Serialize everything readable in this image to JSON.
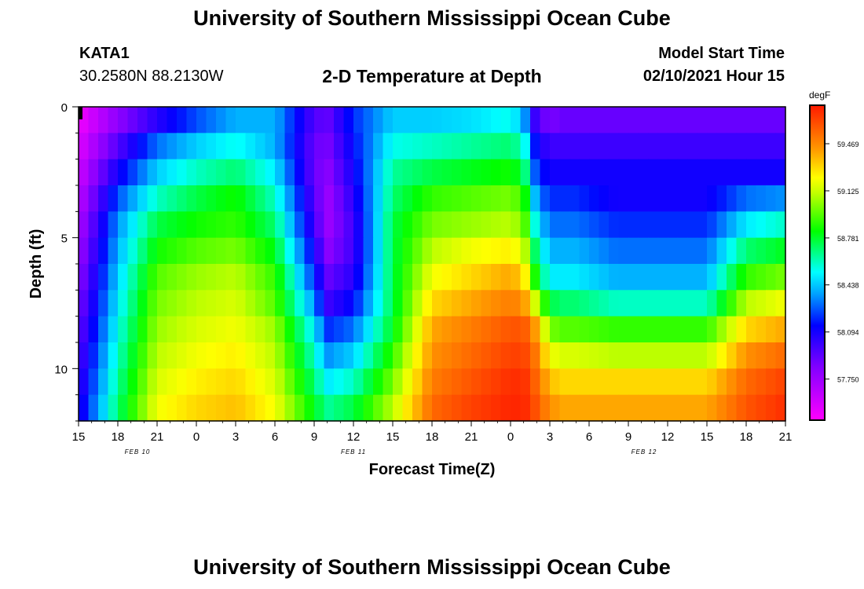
{
  "header": {
    "title": "University of Southern Mississippi Ocean Cube",
    "station_id": "KATA1",
    "coords": "30.2580N 88.2130W",
    "chart_title": "2-D Temperature at Depth",
    "model_label": "Model Start Time",
    "model_time": "02/10/2021 Hour 15"
  },
  "footer": {
    "title": "University of Southern Mississippi Ocean Cube"
  },
  "chart_data": {
    "type": "heatmap",
    "title": "2-D Temperature at Depth",
    "xlabel": "Forecast Time(Z)",
    "ylabel": "Depth (ft)",
    "ylim": [
      0,
      12
    ],
    "y_ticks": [
      0,
      5,
      10
    ],
    "x_tick_labels": [
      "15",
      "18",
      "21",
      "0",
      "3",
      "6",
      "9",
      "12",
      "15",
      "18",
      "21",
      "0",
      "3",
      "6",
      "9",
      "12",
      "15",
      "18",
      "21"
    ],
    "date_labels": [
      {
        "label": "FEB 10",
        "at_tick": 1.5
      },
      {
        "label": "FEB 11",
        "at_tick": 7
      },
      {
        "label": "FEB 12",
        "at_tick": 14.4
      }
    ],
    "x_hours": [
      0,
      3,
      6,
      9,
      12,
      15,
      18,
      21,
      24,
      27,
      30,
      33,
      36,
      39,
      42,
      45,
      48,
      51,
      54
    ],
    "colorbar": {
      "unit": "degF",
      "labels": [
        "59.469",
        "59.125",
        "58.781",
        "58.438",
        "58.094",
        "57.750"
      ],
      "values": [
        59.469,
        59.125,
        58.781,
        58.438,
        58.094,
        57.75
      ],
      "min": 57.45,
      "max": 59.75
    },
    "depth_bands_ft": [
      0.5,
      1.5,
      2.5,
      3.5,
      4.5,
      5.5,
      6.5,
      7.5,
      8.5,
      9.5,
      10.5,
      11.5
    ],
    "key_hours": [
      0,
      3,
      6,
      9,
      12,
      15,
      18,
      19,
      21,
      24,
      27,
      30,
      33,
      34,
      35,
      36,
      37,
      38,
      41,
      48,
      51,
      54
    ],
    "temperature_degF": [
      [
        57.5,
        57.8,
        58.05,
        58.25,
        58.4,
        58.4,
        57.95,
        57.9,
        58.2,
        58.45,
        58.45,
        58.48,
        58.55,
        58.4,
        57.95,
        57.85,
        57.9,
        57.9,
        57.9,
        57.9,
        57.9,
        57.9
      ],
      [
        57.55,
        57.95,
        58.3,
        58.45,
        58.55,
        58.4,
        57.9,
        57.85,
        58.15,
        58.55,
        58.6,
        58.65,
        58.7,
        58.6,
        58.1,
        58.0,
        58.0,
        58.0,
        58.0,
        58.0,
        58.0,
        58.0
      ],
      [
        57.6,
        58.1,
        58.45,
        58.6,
        58.7,
        58.5,
        57.9,
        57.8,
        58.1,
        58.65,
        58.75,
        58.8,
        58.85,
        58.75,
        58.2,
        58.1,
        58.1,
        58.1,
        58.1,
        58.1,
        58.1,
        58.1
      ],
      [
        57.65,
        58.25,
        58.6,
        58.75,
        58.85,
        58.6,
        57.95,
        57.75,
        58.05,
        58.7,
        58.9,
        58.95,
        59.0,
        58.9,
        58.35,
        58.2,
        58.2,
        58.2,
        58.1,
        58.1,
        58.3,
        58.35
      ],
      [
        57.7,
        58.35,
        58.75,
        58.85,
        58.9,
        58.7,
        58.0,
        57.75,
        58.0,
        58.75,
        59.0,
        59.05,
        59.1,
        59.0,
        58.5,
        58.3,
        58.3,
        58.3,
        58.2,
        58.2,
        58.5,
        58.6
      ],
      [
        57.75,
        58.4,
        58.85,
        58.95,
        59.0,
        58.8,
        58.1,
        57.8,
        58.0,
        58.75,
        59.1,
        59.2,
        59.25,
        59.15,
        58.65,
        58.4,
        58.4,
        58.4,
        58.3,
        58.3,
        58.7,
        58.8
      ],
      [
        57.8,
        58.45,
        58.95,
        59.05,
        59.1,
        58.9,
        58.2,
        57.9,
        58.05,
        58.75,
        59.2,
        59.3,
        59.4,
        59.3,
        58.8,
        58.5,
        58.5,
        58.5,
        58.4,
        58.4,
        58.9,
        59.0
      ],
      [
        57.85,
        58.5,
        59.0,
        59.1,
        59.15,
        58.95,
        58.35,
        58.0,
        58.15,
        58.75,
        59.3,
        59.4,
        59.5,
        59.45,
        59.1,
        58.75,
        58.7,
        58.7,
        58.6,
        58.6,
        59.1,
        59.2
      ],
      [
        57.9,
        58.55,
        59.05,
        59.15,
        59.2,
        59.05,
        58.5,
        58.2,
        58.3,
        58.8,
        59.4,
        59.5,
        59.6,
        59.6,
        59.4,
        59.0,
        58.95,
        58.95,
        58.9,
        58.9,
        59.3,
        59.4
      ],
      [
        57.95,
        58.6,
        59.1,
        59.2,
        59.25,
        59.1,
        58.6,
        58.35,
        58.45,
        58.9,
        59.45,
        59.55,
        59.65,
        59.65,
        59.5,
        59.2,
        59.15,
        59.15,
        59.1,
        59.1,
        59.45,
        59.55
      ],
      [
        58.0,
        58.65,
        59.15,
        59.25,
        59.3,
        59.15,
        58.7,
        58.5,
        58.6,
        59.0,
        59.5,
        59.6,
        59.7,
        59.7,
        59.55,
        59.35,
        59.3,
        59.3,
        59.3,
        59.3,
        59.55,
        59.65
      ],
      [
        58.05,
        58.7,
        59.2,
        59.3,
        59.35,
        59.2,
        58.8,
        58.65,
        58.75,
        59.1,
        59.55,
        59.65,
        59.72,
        59.72,
        59.6,
        59.45,
        59.4,
        59.4,
        59.4,
        59.4,
        59.6,
        59.7
      ]
    ]
  }
}
